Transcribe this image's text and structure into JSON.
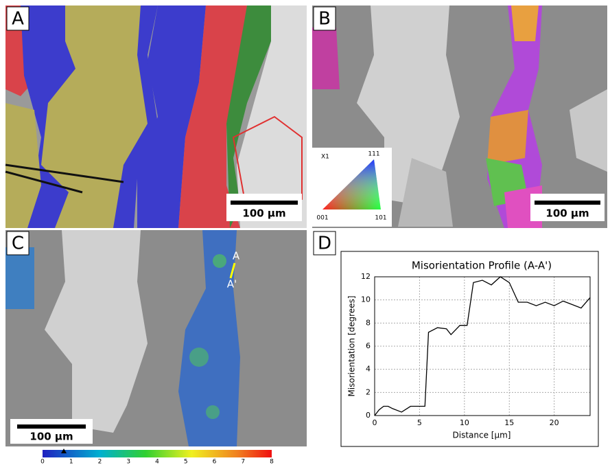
{
  "panels": {
    "labels": [
      "A",
      "B",
      "C",
      "D"
    ]
  },
  "scale_bars": [
    "100 µm",
    "100 µm",
    "100 µm"
  ],
  "ipf_key": {
    "axis": "X1",
    "corners": [
      "111",
      "001",
      "101"
    ]
  },
  "profile_markers": [
    "A",
    "A'"
  ],
  "colorbar": {
    "range": [
      0,
      8
    ],
    "ticks": [
      0,
      1,
      2,
      3,
      4,
      5,
      6,
      7,
      8
    ]
  },
  "chart_data": {
    "type": "line",
    "title": "Misorientation Profile (A-A')",
    "x_label": "Distance [µm]",
    "y_label": "Misorientation [degrees]",
    "x": [
      0,
      0.5,
      1,
      1.5,
      2,
      3,
      4,
      5,
      5.6,
      6,
      7,
      8,
      8.5,
      9.5,
      10.3,
      11,
      12,
      13,
      14,
      15,
      16,
      17,
      18,
      19,
      20,
      21,
      22,
      23,
      24
    ],
    "values": [
      0,
      0.5,
      0.8,
      0.8,
      0.6,
      0.3,
      0.8,
      0.8,
      0.8,
      7.2,
      7.6,
      7.5,
      7.0,
      7.8,
      7.8,
      11.5,
      11.7,
      11.3,
      12,
      11.5,
      9.8,
      9.8,
      9.5,
      9.8,
      9.5,
      9.9,
      9.6,
      9.3,
      10.2
    ],
    "color": "#000000",
    "xlim": [
      0,
      24
    ],
    "ylim": [
      0,
      12
    ],
    "xticks": [
      0,
      5,
      10,
      15,
      20
    ],
    "yticks": [
      0,
      2,
      4,
      6,
      8,
      10,
      12
    ],
    "grid": true
  }
}
